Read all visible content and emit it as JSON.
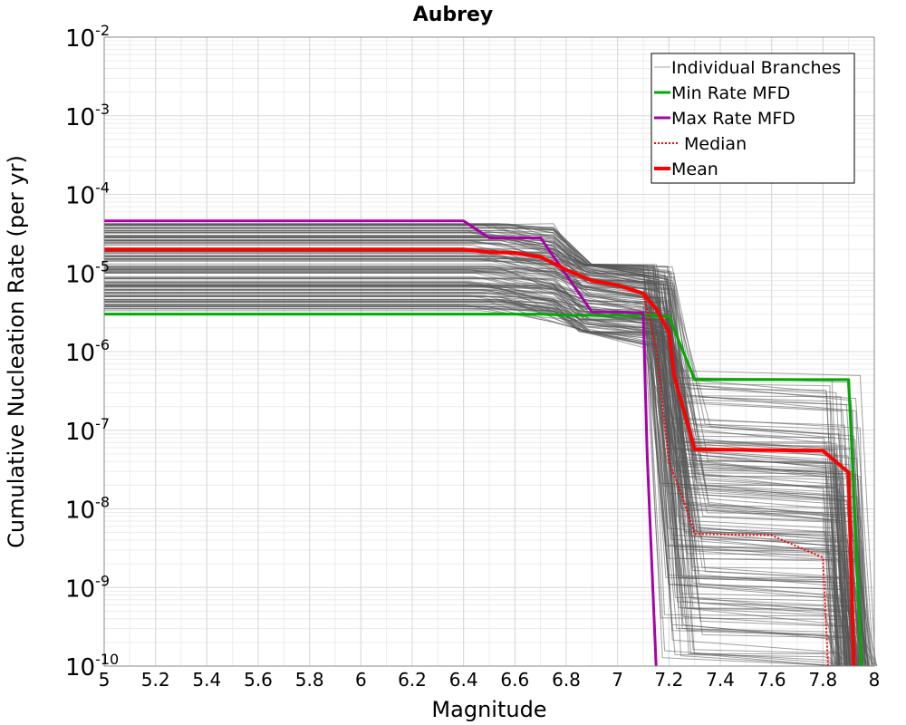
{
  "chart_data": {
    "type": "line",
    "title": "Aubrey",
    "xlabel": "Magnitude",
    "ylabel": "Cumulative Nucleation Rate (per yr)",
    "xlim": [
      5,
      8
    ],
    "ylim": [
      1e-10,
      0.01
    ],
    "yscale": "log",
    "grid": true,
    "legend_position": "top-right",
    "x_ticks": [
      "5",
      "5.2",
      "5.4",
      "5.6",
      "5.8",
      "6",
      "6.2",
      "6.4",
      "6.6",
      "6.8",
      "7",
      "7.2",
      "7.4",
      "7.6",
      "7.8",
      "8"
    ],
    "y_ticks": [
      {
        "base": "10",
        "exp": "-2"
      },
      {
        "base": "10",
        "exp": "-3"
      },
      {
        "base": "10",
        "exp": "-4"
      },
      {
        "base": "10",
        "exp": "-5"
      },
      {
        "base": "10",
        "exp": "-6"
      },
      {
        "base": "10",
        "exp": "-7"
      },
      {
        "base": "10",
        "exp": "-8"
      },
      {
        "base": "10",
        "exp": "-9"
      },
      {
        "base": "10",
        "exp": "-10"
      }
    ],
    "series": [
      {
        "name": "Individual Branches",
        "color": "#555555",
        "style": "thin",
        "description_count": 160
      },
      {
        "name": "Min Rate MFD",
        "color": "#00aa00",
        "style": "solid",
        "x": [
          5.0,
          6.7,
          6.8,
          7.0,
          7.1,
          7.2,
          7.3,
          7.9,
          7.95
        ],
        "y": [
          3e-06,
          3e-06,
          2.9e-06,
          2.9e-06,
          2.9e-06,
          2.8e-06,
          4.4e-07,
          4.4e-07,
          1e-10
        ]
      },
      {
        "name": "Max Rate MFD",
        "color": "#aa00aa",
        "style": "solid",
        "x": [
          5.0,
          6.4,
          6.5,
          6.7,
          6.9,
          7.0,
          7.1,
          7.115,
          7.15
        ],
        "y": [
          4.6e-05,
          4.6e-05,
          2.8e-05,
          2.8e-05,
          3.2e-06,
          3.2e-06,
          3.1e-06,
          5e-08,
          1e-10
        ]
      },
      {
        "name": "Median",
        "color": "#ff0000",
        "style": "dotted",
        "x": [
          5.0,
          6.4,
          6.5,
          6.6,
          6.7,
          6.8,
          6.9,
          7.0,
          7.1,
          7.15,
          7.2,
          7.25,
          7.3,
          7.6,
          7.8,
          7.82
        ],
        "y": [
          2e-05,
          2e-05,
          1.85e-05,
          1.8e-05,
          1.6e-05,
          1.1e-05,
          8e-06,
          7e-06,
          5.5e-06,
          1.1e-06,
          4e-08,
          1.5e-08,
          4.8e-09,
          4.6e-09,
          2.4e-09,
          1e-10
        ]
      },
      {
        "name": "Mean",
        "color": "#ff0000",
        "style": "thick",
        "x": [
          5.0,
          6.4,
          6.5,
          6.6,
          6.7,
          6.8,
          6.9,
          7.0,
          7.1,
          7.15,
          7.2,
          7.22,
          7.3,
          7.8,
          7.9,
          7.92
        ],
        "y": [
          2e-05,
          2e-05,
          1.85e-05,
          1.8e-05,
          1.6e-05,
          1.1e-05,
          8e-06,
          7e-06,
          5.5e-06,
          3.5e-06,
          1.8e-06,
          5e-07,
          5.7e-08,
          5.5e-08,
          2.9e-08,
          1e-10
        ]
      }
    ]
  }
}
